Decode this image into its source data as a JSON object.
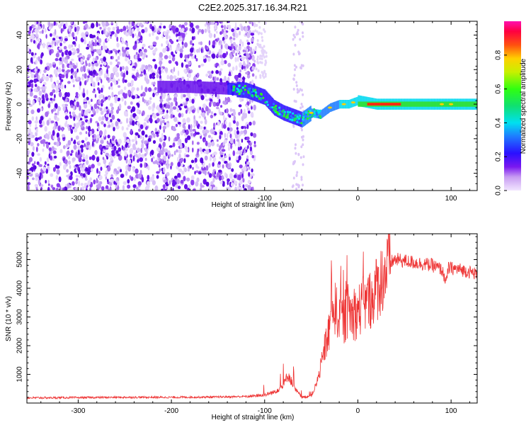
{
  "title": "C2E2.2025.317.16.34.R21",
  "chart_data": [
    {
      "type": "heatmap",
      "xlabel": "Height of straight line (km)",
      "ylabel": "Frequency (Hz)",
      "xlim": [
        -355,
        128
      ],
      "ylim": [
        -50,
        48
      ],
      "xticks": [
        -300,
        -200,
        -100,
        0,
        100
      ],
      "yticks": [
        -40,
        -20,
        0,
        20,
        40
      ],
      "signal_track": {
        "x": [
          -210,
          -180,
          -140,
          -120,
          -100,
          -90,
          -80,
          -70,
          -60,
          -50,
          -40,
          -30,
          -20,
          -10,
          0,
          20,
          40,
          60,
          80,
          100,
          128
        ],
        "y": [
          10,
          10,
          9,
          8,
          4,
          -2,
          -5,
          -7,
          -9,
          -5,
          -6,
          -2,
          0,
          0,
          2,
          0,
          0,
          0,
          0,
          0,
          0
        ]
      },
      "colorbar": {
        "label": "Normalized spectral amplitude",
        "range": [
          0.0,
          1.0
        ],
        "ticks": [
          "0.0",
          "0.2",
          "0.4",
          "0.6",
          "0.8"
        ]
      }
    },
    {
      "type": "line",
      "xlabel": "Height of straight line (km)",
      "ylabel": "SNR (10 * v/v)",
      "xlim": [
        -355,
        128
      ],
      "ylim": [
        0,
        5900
      ],
      "xticks": [
        -300,
        -200,
        -100,
        0,
        100
      ],
      "yticks": [
        1000,
        2000,
        3000,
        4000,
        5000
      ],
      "color": "#ee3333",
      "series": [
        {
          "name": "SNR",
          "x": [
            -355,
            -300,
            -250,
            -200,
            -150,
            -120,
            -100,
            -90,
            -80,
            -75,
            -72,
            -68,
            -60,
            -50,
            -45,
            -40,
            -35,
            -30,
            -28,
            -26,
            -20,
            -15,
            -10,
            -5,
            0,
            5,
            10,
            15,
            20,
            25,
            30,
            35,
            40,
            50,
            60,
            70,
            80,
            90,
            95,
            97,
            100,
            110,
            128
          ],
          "y": [
            180,
            190,
            200,
            200,
            210,
            230,
            280,
            380,
            600,
            1000,
            800,
            500,
            200,
            250,
            600,
            1200,
            2000,
            2600,
            4200,
            3300,
            3100,
            2800,
            3300,
            3000,
            3200,
            3400,
            3500,
            3700,
            4000,
            4300,
            4600,
            4900,
            5000,
            4950,
            4900,
            4850,
            4800,
            4650,
            4200,
            4700,
            4700,
            4650,
            4500
          ]
        }
      ]
    }
  ]
}
